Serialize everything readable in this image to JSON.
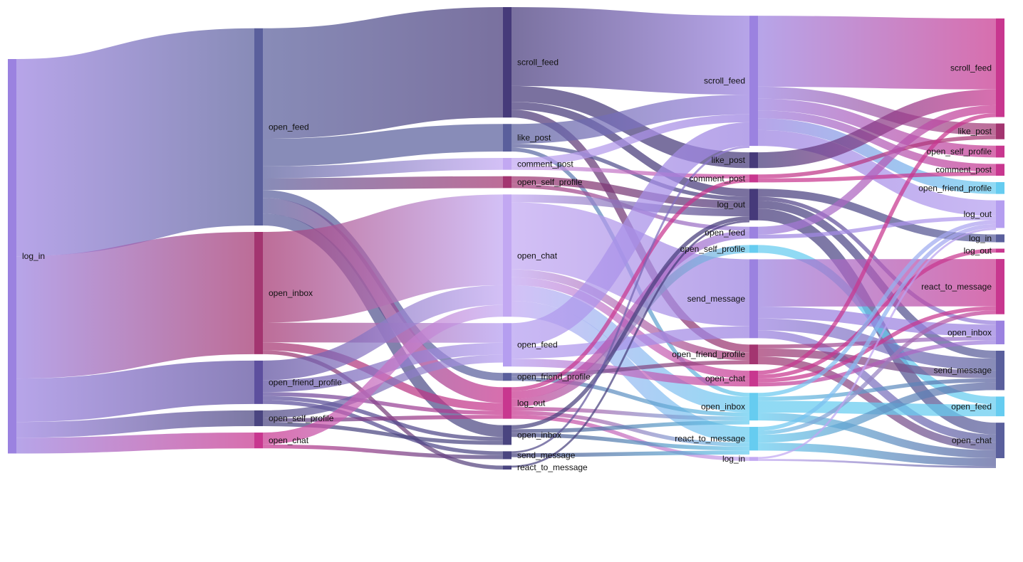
{
  "chart_data": {
    "type": "sankey",
    "title": "",
    "stages": [
      {
        "nodes": [
          {
            "id": "s0_log_in",
            "label": "log_in",
            "value": 100,
            "color": "#9b82e0"
          }
        ]
      },
      {
        "nodes": [
          {
            "id": "s1_open_feed",
            "label": "open_feed",
            "value": 50,
            "color": "#5a5f9c"
          },
          {
            "id": "s1_open_inbox",
            "label": "open_inbox",
            "value": 31,
            "color": "#a33570"
          },
          {
            "id": "s1_open_friend_profile",
            "label": "open_friend_profile",
            "value": 11,
            "color": "#5d4f9e"
          },
          {
            "id": "s1_open_self_profile",
            "label": "open_self_profile",
            "value": 4,
            "color": "#4a4580"
          },
          {
            "id": "s1_open_chat",
            "label": "open_chat",
            "value": 4,
            "color": "#c8378f"
          }
        ]
      },
      {
        "nodes": [
          {
            "id": "s2_scroll_feed",
            "label": "scroll_feed",
            "value": 28,
            "color": "#463a7a"
          },
          {
            "id": "s2_like_post",
            "label": "like_post",
            "value": 7,
            "color": "#5a5f9c"
          },
          {
            "id": "s2_comment_post",
            "label": "comment_post",
            "value": 3,
            "color": "#c2a8f2"
          },
          {
            "id": "s2_open_self_profile",
            "label": "open_self_profile",
            "value": 3,
            "color": "#a33570"
          },
          {
            "id": "s2_open_chat",
            "label": "open_chat",
            "value": 31,
            "color": "#c2a8f2"
          },
          {
            "id": "s2_open_feed",
            "label": "open_feed",
            "value": 11,
            "color": "#b59ef0"
          },
          {
            "id": "s2_open_friend_profile",
            "label": "open_friend_profile",
            "value": 2,
            "color": "#5a5f9c"
          },
          {
            "id": "s2_log_out",
            "label": "log_out",
            "value": 8,
            "color": "#c8378f"
          },
          {
            "id": "s2_open_inbox",
            "label": "open_inbox",
            "value": 5,
            "color": "#4a4580"
          },
          {
            "id": "s2_send_message",
            "label": "send_message",
            "value": 2,
            "color": "#4a4580"
          },
          {
            "id": "s2_react_to_message",
            "label": "react_to_message",
            "value": 1,
            "color": "#4a4580"
          }
        ]
      },
      {
        "nodes": [
          {
            "id": "s3_scroll_feed",
            "label": "scroll_feed",
            "value": 33,
            "color": "#9b82e0"
          },
          {
            "id": "s3_like_post",
            "label": "like_post",
            "value": 4,
            "color": "#463a7a"
          },
          {
            "id": "s3_comment_post",
            "label": "comment_post",
            "value": 2,
            "color": "#c8378f"
          },
          {
            "id": "s3_log_out",
            "label": "log_out",
            "value": 8,
            "color": "#463a7a"
          },
          {
            "id": "s3_open_feed",
            "label": "open_feed",
            "value": 3,
            "color": "#9b82e0"
          },
          {
            "id": "s3_open_self_profile",
            "label": "open_self_profile",
            "value": 2,
            "color": "#66ccf0"
          },
          {
            "id": "s3_send_message",
            "label": "send_message",
            "value": 20,
            "color": "#9b82e0"
          },
          {
            "id": "s3_open_friend_profile",
            "label": "open_friend_profile",
            "value": 5,
            "color": "#a33570"
          },
          {
            "id": "s3_open_chat",
            "label": "open_chat",
            "value": 4,
            "color": "#c8378f"
          },
          {
            "id": "s3_open_inbox",
            "label": "open_inbox",
            "value": 7,
            "color": "#66ccf0"
          },
          {
            "id": "s3_react_to_message",
            "label": "react_to_message",
            "value": 6,
            "color": "#66ccf0"
          },
          {
            "id": "s3_log_in",
            "label": "log_in",
            "value": 1,
            "color": "#c2a8f2"
          }
        ]
      },
      {
        "nodes": [
          {
            "id": "s4_scroll_feed",
            "label": "scroll_feed",
            "value": 25,
            "color": "#c8378f"
          },
          {
            "id": "s4_like_post",
            "label": "like_post",
            "value": 4,
            "color": "#a33570"
          },
          {
            "id": "s4_open_self_profile",
            "label": "open_self_profile",
            "value": 3,
            "color": "#c8378f"
          },
          {
            "id": "s4_comment_post",
            "label": "comment_post",
            "value": 3,
            "color": "#c8378f"
          },
          {
            "id": "s4_open_friend_profile",
            "label": "open_friend_profile",
            "value": 3,
            "color": "#66ccf0"
          },
          {
            "id": "s4_log_out",
            "label": "log_out",
            "value": 7,
            "color": "#b59ef0"
          },
          {
            "id": "s4_log_in",
            "label": "log_in",
            "value": 2,
            "color": "#5a5f9c"
          },
          {
            "id": "s4_log_out_2",
            "label": "log_out",
            "value": 1,
            "color": "#c8378f"
          },
          {
            "id": "s4_react_to_message",
            "label": "react_to_message",
            "value": 14,
            "color": "#c8378f"
          },
          {
            "id": "s4_open_inbox",
            "label": "open_inbox",
            "value": 6,
            "color": "#9b82e0"
          },
          {
            "id": "s4_send_message",
            "label": "send_message",
            "value": 10,
            "color": "#5a5f9c"
          },
          {
            "id": "s4_open_feed",
            "label": "open_feed",
            "value": 5,
            "color": "#66ccf0"
          },
          {
            "id": "s4_open_chat",
            "label": "open_chat",
            "value": 9,
            "color": "#5a5f9c"
          }
        ]
      }
    ],
    "links": [
      {
        "source": "s0_log_in",
        "target": "s1_open_feed",
        "value": 50
      },
      {
        "source": "s0_log_in",
        "target": "s1_open_inbox",
        "value": 31
      },
      {
        "source": "s0_log_in",
        "target": "s1_open_friend_profile",
        "value": 11
      },
      {
        "source": "s0_log_in",
        "target": "s1_open_self_profile",
        "value": 4
      },
      {
        "source": "s0_log_in",
        "target": "s1_open_chat",
        "value": 4
      },
      {
        "source": "s1_open_feed",
        "target": "s2_scroll_feed",
        "value": 28
      },
      {
        "source": "s1_open_feed",
        "target": "s2_like_post",
        "value": 7
      },
      {
        "source": "s1_open_feed",
        "target": "s2_comment_post",
        "value": 3
      },
      {
        "source": "s1_open_feed",
        "target": "s2_open_self_profile",
        "value": 3
      },
      {
        "source": "s1_open_feed",
        "target": "s2_open_friend_profile",
        "value": 2
      },
      {
        "source": "s1_open_feed",
        "target": "s2_log_out",
        "value": 4
      },
      {
        "source": "s1_open_feed",
        "target": "s2_open_inbox",
        "value": 3
      },
      {
        "source": "s1_open_inbox",
        "target": "s2_open_chat",
        "value": 23
      },
      {
        "source": "s1_open_inbox",
        "target": "s2_open_feed",
        "value": 5
      },
      {
        "source": "s1_open_inbox",
        "target": "s2_log_out",
        "value": 2
      },
      {
        "source": "s1_open_inbox",
        "target": "s2_react_to_message",
        "value": 1
      },
      {
        "source": "s1_open_friend_profile",
        "target": "s2_open_chat",
        "value": 5
      },
      {
        "source": "s1_open_friend_profile",
        "target": "s2_open_feed",
        "value": 3
      },
      {
        "source": "s1_open_friend_profile",
        "target": "s2_log_out",
        "value": 1
      },
      {
        "source": "s1_open_friend_profile",
        "target": "s2_open_inbox",
        "value": 1
      },
      {
        "source": "s1_open_friend_profile",
        "target": "s2_send_message",
        "value": 1
      },
      {
        "source": "s1_open_self_profile",
        "target": "s2_open_feed",
        "value": 2
      },
      {
        "source": "s1_open_self_profile",
        "target": "s2_open_inbox",
        "value": 1
      },
      {
        "source": "s1_open_self_profile",
        "target": "s2_log_out",
        "value": 1
      },
      {
        "source": "s1_open_chat",
        "target": "s2_open_chat",
        "value": 3
      },
      {
        "source": "s1_open_chat",
        "target": "s2_send_message",
        "value": 1
      },
      {
        "source": "s2_scroll_feed",
        "target": "s3_scroll_feed",
        "value": 20
      },
      {
        "source": "s2_scroll_feed",
        "target": "s3_like_post",
        "value": 4
      },
      {
        "source": "s2_scroll_feed",
        "target": "s3_log_out",
        "value": 2
      },
      {
        "source": "s2_scroll_feed",
        "target": "s3_open_friend_profile",
        "value": 2
      },
      {
        "source": "s2_like_post",
        "target": "s3_scroll_feed",
        "value": 5
      },
      {
        "source": "s2_like_post",
        "target": "s3_log_out",
        "value": 1
      },
      {
        "source": "s2_like_post",
        "target": "s3_open_inbox",
        "value": 1
      },
      {
        "source": "s2_comment_post",
        "target": "s3_scroll_feed",
        "value": 2
      },
      {
        "source": "s2_comment_post",
        "target": "s3_comment_post",
        "value": 1
      },
      {
        "source": "s2_open_self_profile",
        "target": "s3_log_out",
        "value": 2
      },
      {
        "source": "s2_open_self_profile",
        "target": "s3_open_feed",
        "value": 1
      },
      {
        "source": "s2_open_chat",
        "target": "s3_send_message",
        "value": 17
      },
      {
        "source": "s2_open_chat",
        "target": "s3_open_inbox",
        "value": 4
      },
      {
        "source": "s2_open_chat",
        "target": "s3_react_to_message",
        "value": 4
      },
      {
        "source": "s2_open_chat",
        "target": "s3_open_friend_profile",
        "value": 2
      },
      {
        "source": "s2_open_chat",
        "target": "s3_open_chat",
        "value": 2
      },
      {
        "source": "s2_open_chat",
        "target": "s3_log_out",
        "value": 2
      },
      {
        "source": "s2_open_feed",
        "target": "s3_scroll_feed",
        "value": 6
      },
      {
        "source": "s2_open_feed",
        "target": "s3_open_chat",
        "value": 2
      },
      {
        "source": "s2_open_feed",
        "target": "s3_send_message",
        "value": 3
      },
      {
        "source": "s2_open_friend_profile",
        "target": "s3_open_friend_profile",
        "value": 1
      },
      {
        "source": "s2_open_friend_profile",
        "target": "s3_open_inbox",
        "value": 1
      },
      {
        "source": "s2_log_out",
        "target": "s3_log_in",
        "value": 1
      },
      {
        "source": "s2_log_out",
        "target": "s3_open_feed",
        "value": 2
      },
      {
        "source": "s2_log_out",
        "target": "s3_open_self_profile",
        "value": 2
      },
      {
        "source": "s2_log_out",
        "target": "s3_comment_post",
        "value": 1
      },
      {
        "source": "s2_log_out",
        "target": "s3_open_inbox",
        "value": 1
      },
      {
        "source": "s2_log_out",
        "target": "s3_react_to_message",
        "value": 1
      },
      {
        "source": "s2_open_inbox",
        "target": "s3_log_out",
        "value": 1
      },
      {
        "source": "s2_open_inbox",
        "target": "s3_open_inbox",
        "value": 1
      },
      {
        "source": "s2_open_inbox",
        "target": "s3_react_to_message",
        "value": 1
      },
      {
        "source": "s2_send_message",
        "target": "s3_scroll_feed",
        "value": 0.5
      },
      {
        "source": "s2_send_message",
        "target": "s3_react_to_message",
        "value": 1
      },
      {
        "source": "s2_react_to_message",
        "target": "s3_log_out",
        "value": 0.5
      },
      {
        "source": "s3_scroll_feed",
        "target": "s4_scroll_feed",
        "value": 18
      },
      {
        "source": "s3_scroll_feed",
        "target": "s4_like_post",
        "value": 3
      },
      {
        "source": "s3_scroll_feed",
        "target": "s4_open_self_profile",
        "value": 3
      },
      {
        "source": "s3_scroll_feed",
        "target": "s4_comment_post",
        "value": 2
      },
      {
        "source": "s3_scroll_feed",
        "target": "s4_open_friend_profile",
        "value": 3
      },
      {
        "source": "s3_scroll_feed",
        "target": "s4_log_out",
        "value": 4
      },
      {
        "source": "s3_like_post",
        "target": "s4_scroll_feed",
        "value": 4
      },
      {
        "source": "s3_comment_post",
        "target": "s4_like_post",
        "value": 1
      },
      {
        "source": "s3_comment_post",
        "target": "s4_comment_post",
        "value": 1
      },
      {
        "source": "s3_log_out",
        "target": "s4_log_in",
        "value": 2
      },
      {
        "source": "s3_log_out",
        "target": "s4_open_chat",
        "value": 3
      },
      {
        "source": "s3_log_out",
        "target": "s4_open_inbox",
        "value": 1
      },
      {
        "source": "s3_log_out",
        "target": "s4_send_message",
        "value": 2
      },
      {
        "source": "s3_open_feed",
        "target": "s4_scroll_feed",
        "value": 2
      },
      {
        "source": "s3_open_feed",
        "target": "s4_log_out",
        "value": 1
      },
      {
        "source": "s3_open_self_profile",
        "target": "s4_open_feed",
        "value": 2
      },
      {
        "source": "s3_send_message",
        "target": "s4_react_to_message",
        "value": 12
      },
      {
        "source": "s3_send_message",
        "target": "s4_open_inbox",
        "value": 3
      },
      {
        "source": "s3_send_message",
        "target": "s4_send_message",
        "value": 3
      },
      {
        "source": "s3_send_message",
        "target": "s4_open_chat",
        "value": 2
      },
      {
        "source": "s3_open_friend_profile",
        "target": "s4_open_inbox",
        "value": 1
      },
      {
        "source": "s3_open_friend_profile",
        "target": "s4_send_message",
        "value": 2
      },
      {
        "source": "s3_open_friend_profile",
        "target": "s4_open_chat",
        "value": 2
      },
      {
        "source": "s3_open_chat",
        "target": "s4_scroll_feed",
        "value": 1
      },
      {
        "source": "s3_open_chat",
        "target": "s4_log_out_2",
        "value": 1
      },
      {
        "source": "s3_open_chat",
        "target": "s4_react_to_message",
        "value": 1
      },
      {
        "source": "s3_open_chat",
        "target": "s4_open_inbox",
        "value": 1
      },
      {
        "source": "s3_open_inbox",
        "target": "s4_open_feed",
        "value": 3
      },
      {
        "source": "s3_open_inbox",
        "target": "s4_log_out",
        "value": 1
      },
      {
        "source": "s3_open_inbox",
        "target": "s4_send_message",
        "value": 1
      },
      {
        "source": "s3_open_inbox",
        "target": "s4_open_chat",
        "value": 2
      },
      {
        "source": "s3_react_to_message",
        "target": "s4_send_message",
        "value": 2
      },
      {
        "source": "s3_react_to_message",
        "target": "s4_open_chat",
        "value": 2
      },
      {
        "source": "s3_react_to_message",
        "target": "s4_react_to_message",
        "value": 1
      },
      {
        "source": "s3_react_to_message",
        "target": "s4_log_out",
        "value": 1
      },
      {
        "source": "s3_log_in",
        "target": "s4_open_chat",
        "value": 0.5
      },
      {
        "source": "s3_log_in",
        "target": "s4_log_out",
        "value": 0.5
      }
    ]
  }
}
